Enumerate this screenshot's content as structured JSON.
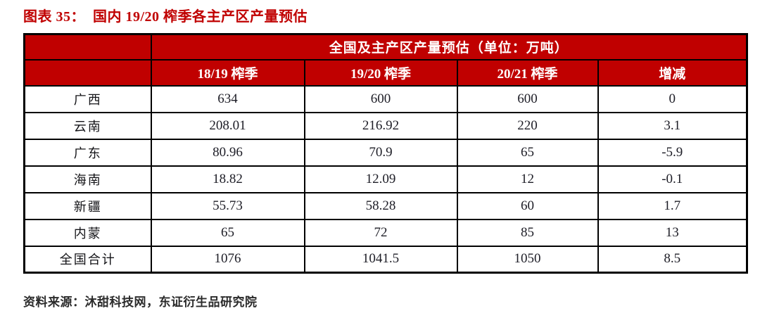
{
  "title": "图表 35：  国内 19/20 榨季各主产区产量预估",
  "colors": {
    "header_bg": "#c00000",
    "header_text": "#ffffff",
    "title_text": "#c00000",
    "border": "#000000"
  },
  "table": {
    "group_header": "全国及主产区产量预估（单位：万吨）",
    "columns": [
      "18/19 榨季",
      "19/20 榨季",
      "20/21 榨季",
      "增减"
    ],
    "rows": [
      {
        "label": "广西",
        "values": [
          "634",
          "600",
          "600",
          "0"
        ]
      },
      {
        "label": "云南",
        "values": [
          "208.01",
          "216.92",
          "220",
          "3.1"
        ]
      },
      {
        "label": "广东",
        "values": [
          "80.96",
          "70.9",
          "65",
          "-5.9"
        ]
      },
      {
        "label": "海南",
        "values": [
          "18.82",
          "12.09",
          "12",
          "-0.1"
        ]
      },
      {
        "label": "新疆",
        "values": [
          "55.73",
          "58.28",
          "60",
          "1.7"
        ]
      },
      {
        "label": "内蒙",
        "values": [
          "65",
          "72",
          "85",
          "13"
        ]
      },
      {
        "label": "全国合计",
        "values": [
          "1076",
          "1041.5",
          "1050",
          "8.5"
        ]
      }
    ]
  },
  "footer": {
    "source": "资料来源：沐甜科技网，东证衍生品研究院"
  }
}
